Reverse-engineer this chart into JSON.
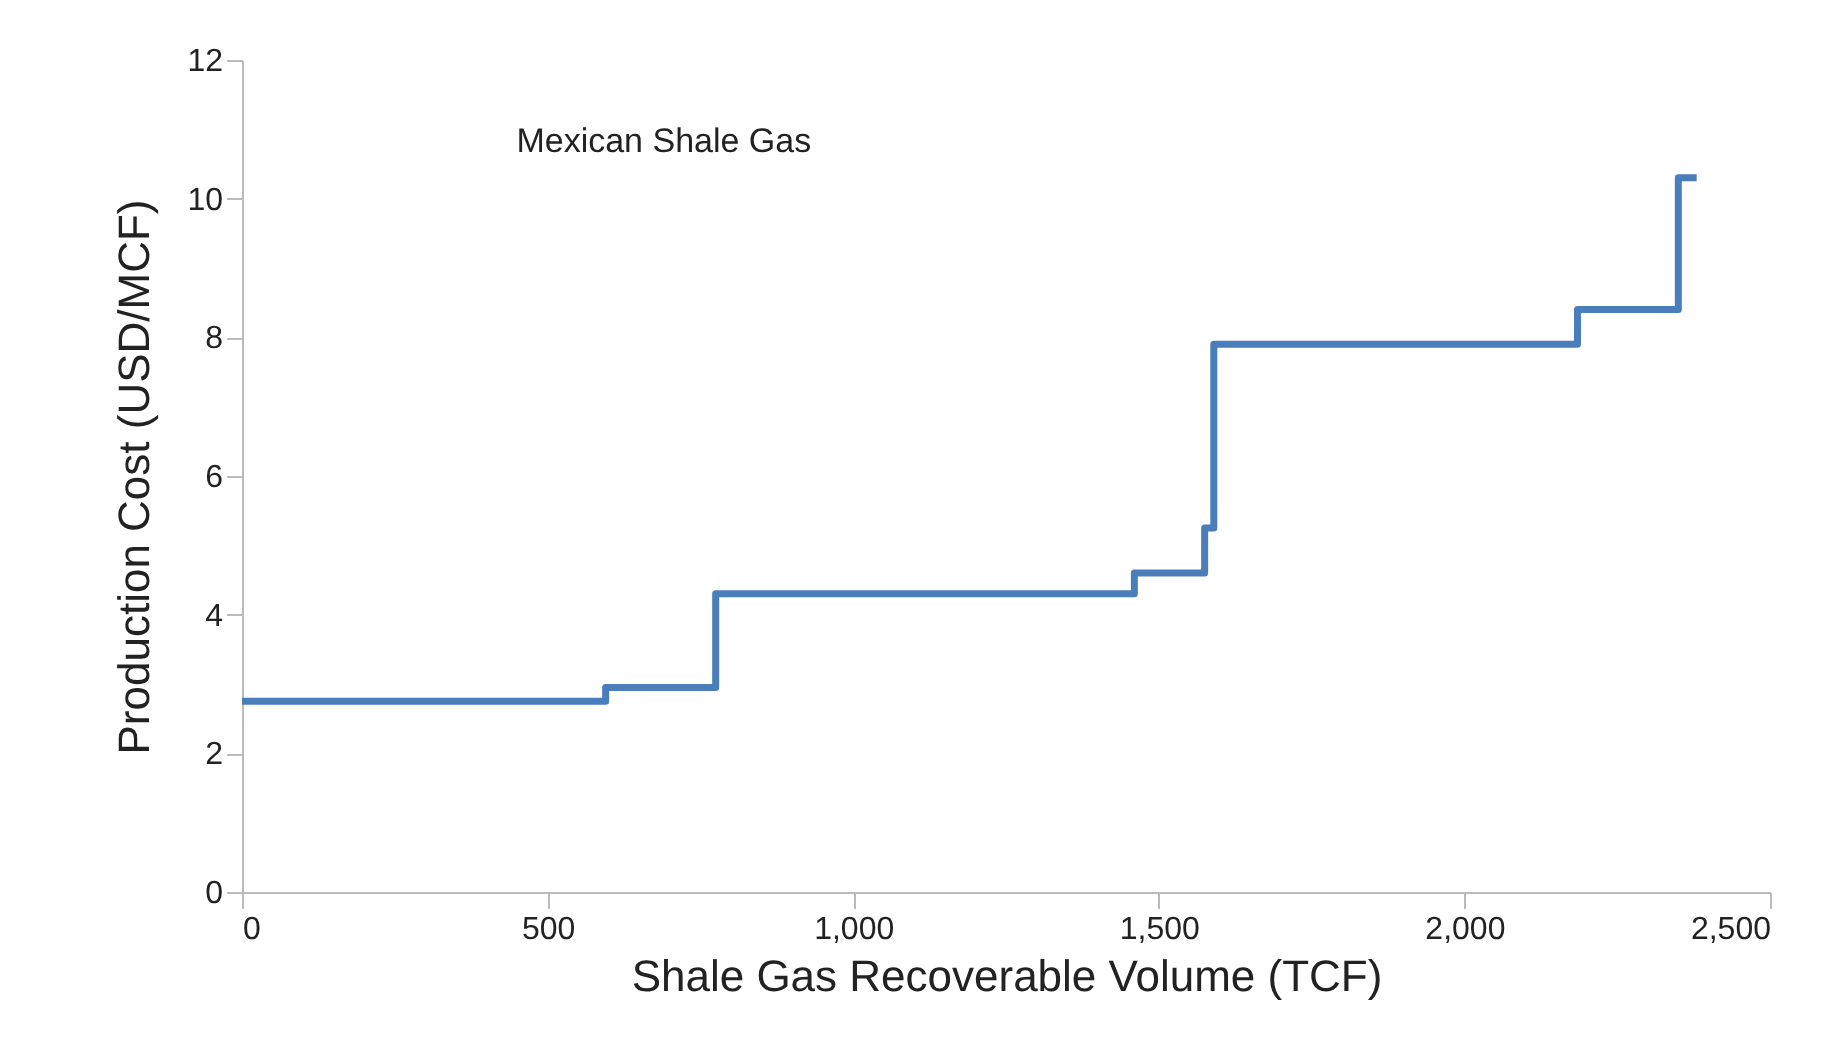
{
  "chart_data": {
    "type": "step",
    "title": "Mexican Shale Gas",
    "xlabel": "Shale Gas Recoverable Volume (TCF)",
    "ylabel": "Production Cost (USD/MCF)",
    "x": [
      0,
      595,
      775,
      1460,
      1575,
      1590,
      2185,
      2350,
      2380
    ],
    "series": [
      {
        "color": "#4a7ebb",
        "values": [
          2.75,
          2.95,
          4.3,
          4.6,
          5.25,
          7.9,
          8.4,
          10.3,
          10.3
        ]
      }
    ],
    "xlim": [
      0,
      2500
    ],
    "xticks": [
      0,
      {
        "value": 500,
        "label": "500"
      },
      {
        "value": 1000,
        "label": "1,000"
      },
      {
        "value": 1500,
        "label": "1,500"
      },
      {
        "value": 2000,
        "label": "2,000"
      },
      {
        "value": 2500,
        "label": "2,500"
      }
    ],
    "ylim": [
      0,
      12
    ],
    "yticks": [
      0,
      2,
      4,
      6,
      8,
      10,
      12
    ],
    "grid": false,
    "marker": "none",
    "line_style": "solid"
  }
}
